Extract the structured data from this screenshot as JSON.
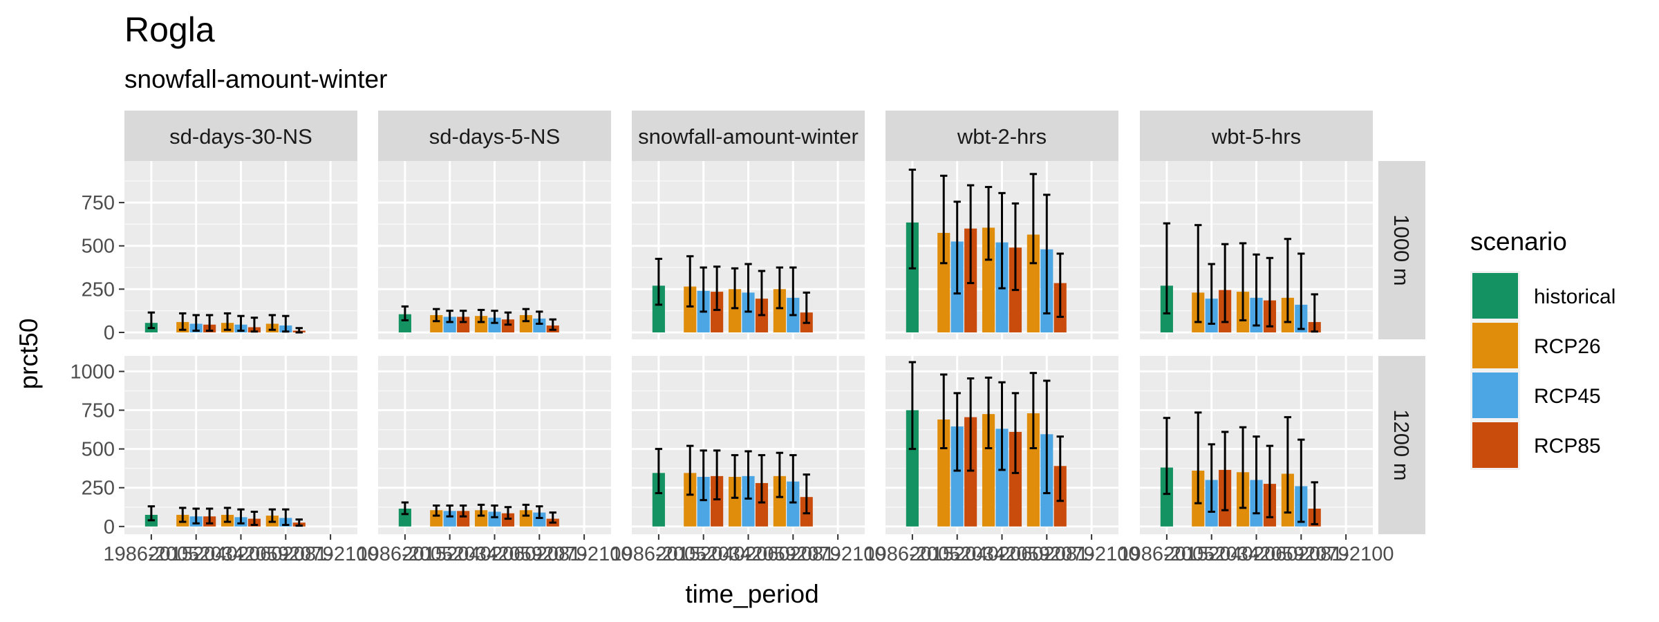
{
  "chart_data": {
    "type": "bar",
    "title": "Rogla",
    "subtitle": "snowfall-amount-winter",
    "xlabel": "time_period",
    "ylabel": "prct50",
    "columns": [
      "sd-days-30-NS",
      "sd-days-5-NS",
      "snowfall-amount-winter",
      "wbt-2-hrs",
      "wbt-5-hrs"
    ],
    "rows": [
      "1000 m",
      "1200 m"
    ],
    "x_tick_labels": [
      "1986-2005",
      "2015-2034",
      "2040-2059",
      "2060-2079",
      "2081-2100"
    ],
    "ylim": [
      [
        -40,
        990
      ],
      [
        -50,
        1100
      ]
    ],
    "y_ticks": [
      [
        0,
        250,
        500,
        750
      ],
      [
        0,
        250,
        500,
        750,
        1000
      ]
    ],
    "legend_title": "scenario",
    "series": [
      {
        "name": "historical",
        "color": "#159261"
      },
      {
        "name": "RCP26",
        "color": "#E08D0B"
      },
      {
        "name": "RCP45",
        "color": "#4BA6E3"
      },
      {
        "name": "RCP85",
        "color": "#CA4C0C"
      }
    ],
    "panels": [
      {
        "column": "sd-days-30-NS",
        "row": "1000 m",
        "bars": [
          {
            "period": "1986-2005",
            "scenario": "historical",
            "value": 55,
            "low": 25,
            "high": 115
          },
          {
            "period": "2015-2034",
            "scenario": "RCP26",
            "value": 60,
            "low": 15,
            "high": 110
          },
          {
            "period": "2015-2034",
            "scenario": "RCP45",
            "value": 50,
            "low": 10,
            "high": 100
          },
          {
            "period": "2015-2034",
            "scenario": "RCP85",
            "value": 45,
            "low": 10,
            "high": 100
          },
          {
            "period": "2040-2059",
            "scenario": "RCP26",
            "value": 55,
            "low": 15,
            "high": 110
          },
          {
            "period": "2040-2059",
            "scenario": "RCP45",
            "value": 45,
            "low": 10,
            "high": 95
          },
          {
            "period": "2040-2059",
            "scenario": "RCP85",
            "value": 30,
            "low": 5,
            "high": 85
          },
          {
            "period": "2060-2079",
            "scenario": "RCP26",
            "value": 50,
            "low": 15,
            "high": 100
          },
          {
            "period": "2060-2079",
            "scenario": "RCP45",
            "value": 40,
            "low": 5,
            "high": 95
          },
          {
            "period": "2060-2079",
            "scenario": "RCP85",
            "value": 10,
            "low": 0,
            "high": 25
          }
        ]
      },
      {
        "column": "sd-days-5-NS",
        "row": "1000 m",
        "bars": [
          {
            "period": "1986-2005",
            "scenario": "historical",
            "value": 105,
            "low": 70,
            "high": 150
          },
          {
            "period": "2015-2034",
            "scenario": "RCP26",
            "value": 100,
            "low": 65,
            "high": 135
          },
          {
            "period": "2015-2034",
            "scenario": "RCP45",
            "value": 90,
            "low": 60,
            "high": 125
          },
          {
            "period": "2015-2034",
            "scenario": "RCP85",
            "value": 90,
            "low": 60,
            "high": 125
          },
          {
            "period": "2040-2059",
            "scenario": "RCP26",
            "value": 95,
            "low": 60,
            "high": 130
          },
          {
            "period": "2040-2059",
            "scenario": "RCP45",
            "value": 85,
            "low": 55,
            "high": 125
          },
          {
            "period": "2040-2059",
            "scenario": "RCP85",
            "value": 75,
            "low": 45,
            "high": 115
          },
          {
            "period": "2060-2079",
            "scenario": "RCP26",
            "value": 100,
            "low": 65,
            "high": 135
          },
          {
            "period": "2060-2079",
            "scenario": "RCP45",
            "value": 80,
            "low": 50,
            "high": 120
          },
          {
            "period": "2060-2079",
            "scenario": "RCP85",
            "value": 40,
            "low": 15,
            "high": 75
          }
        ]
      },
      {
        "column": "snowfall-amount-winter",
        "row": "1000 m",
        "bars": [
          {
            "period": "1986-2005",
            "scenario": "historical",
            "value": 270,
            "low": 160,
            "high": 425
          },
          {
            "period": "2015-2034",
            "scenario": "RCP26",
            "value": 265,
            "low": 150,
            "high": 440
          },
          {
            "period": "2015-2034",
            "scenario": "RCP45",
            "value": 240,
            "low": 120,
            "high": 375
          },
          {
            "period": "2015-2034",
            "scenario": "RCP85",
            "value": 235,
            "low": 130,
            "high": 380
          },
          {
            "period": "2040-2059",
            "scenario": "RCP26",
            "value": 250,
            "low": 140,
            "high": 370
          },
          {
            "period": "2040-2059",
            "scenario": "RCP45",
            "value": 230,
            "low": 120,
            "high": 395
          },
          {
            "period": "2040-2059",
            "scenario": "RCP85",
            "value": 195,
            "low": 100,
            "high": 355
          },
          {
            "period": "2060-2079",
            "scenario": "RCP26",
            "value": 250,
            "low": 140,
            "high": 375
          },
          {
            "period": "2060-2079",
            "scenario": "RCP45",
            "value": 200,
            "low": 100,
            "high": 375
          },
          {
            "period": "2060-2079",
            "scenario": "RCP85",
            "value": 115,
            "low": 55,
            "high": 230
          }
        ]
      },
      {
        "column": "wbt-2-hrs",
        "row": "1000 m",
        "bars": [
          {
            "period": "1986-2005",
            "scenario": "historical",
            "value": 635,
            "low": 370,
            "high": 940
          },
          {
            "period": "2015-2034",
            "scenario": "RCP26",
            "value": 575,
            "low": 400,
            "high": 905
          },
          {
            "period": "2015-2034",
            "scenario": "RCP45",
            "value": 525,
            "low": 225,
            "high": 755
          },
          {
            "period": "2015-2034",
            "scenario": "RCP85",
            "value": 600,
            "low": 285,
            "high": 850
          },
          {
            "period": "2040-2059",
            "scenario": "RCP26",
            "value": 605,
            "low": 420,
            "high": 840
          },
          {
            "period": "2040-2059",
            "scenario": "RCP45",
            "value": 520,
            "low": 255,
            "high": 805
          },
          {
            "period": "2040-2059",
            "scenario": "RCP85",
            "value": 490,
            "low": 245,
            "high": 745
          },
          {
            "period": "2060-2079",
            "scenario": "RCP26",
            "value": 565,
            "low": 400,
            "high": 915
          },
          {
            "period": "2060-2079",
            "scenario": "RCP45",
            "value": 480,
            "low": 110,
            "high": 795
          },
          {
            "period": "2060-2079",
            "scenario": "RCP85",
            "value": 285,
            "low": 90,
            "high": 455
          }
        ]
      },
      {
        "column": "wbt-5-hrs",
        "row": "1000 m",
        "bars": [
          {
            "period": "1986-2005",
            "scenario": "historical",
            "value": 270,
            "low": 110,
            "high": 630
          },
          {
            "period": "2015-2034",
            "scenario": "RCP26",
            "value": 230,
            "low": 60,
            "high": 620
          },
          {
            "period": "2015-2034",
            "scenario": "RCP45",
            "value": 195,
            "low": 50,
            "high": 395
          },
          {
            "period": "2015-2034",
            "scenario": "RCP85",
            "value": 245,
            "low": 60,
            "high": 510
          },
          {
            "period": "2040-2059",
            "scenario": "RCP26",
            "value": 235,
            "low": 70,
            "high": 515
          },
          {
            "period": "2040-2059",
            "scenario": "RCP45",
            "value": 200,
            "low": 40,
            "high": 450
          },
          {
            "period": "2040-2059",
            "scenario": "RCP85",
            "value": 185,
            "low": 35,
            "high": 430
          },
          {
            "period": "2060-2079",
            "scenario": "RCP26",
            "value": 200,
            "low": 60,
            "high": 540
          },
          {
            "period": "2060-2079",
            "scenario": "RCP45",
            "value": 160,
            "low": 20,
            "high": 455
          },
          {
            "period": "2060-2079",
            "scenario": "RCP85",
            "value": 60,
            "low": 5,
            "high": 220
          }
        ]
      },
      {
        "column": "sd-days-30-NS",
        "row": "1200 m",
        "bars": [
          {
            "period": "1986-2005",
            "scenario": "historical",
            "value": 75,
            "low": 40,
            "high": 130
          },
          {
            "period": "2015-2034",
            "scenario": "RCP26",
            "value": 75,
            "low": 30,
            "high": 120
          },
          {
            "period": "2015-2034",
            "scenario": "RCP45",
            "value": 65,
            "low": 20,
            "high": 115
          },
          {
            "period": "2015-2034",
            "scenario": "RCP85",
            "value": 65,
            "low": 20,
            "high": 115
          },
          {
            "period": "2040-2059",
            "scenario": "RCP26",
            "value": 75,
            "low": 30,
            "high": 120
          },
          {
            "period": "2040-2059",
            "scenario": "RCP45",
            "value": 60,
            "low": 20,
            "high": 110
          },
          {
            "period": "2040-2059",
            "scenario": "RCP85",
            "value": 50,
            "low": 10,
            "high": 95
          },
          {
            "period": "2060-2079",
            "scenario": "RCP26",
            "value": 70,
            "low": 30,
            "high": 110
          },
          {
            "period": "2060-2079",
            "scenario": "RCP45",
            "value": 55,
            "low": 10,
            "high": 110
          },
          {
            "period": "2060-2079",
            "scenario": "RCP85",
            "value": 25,
            "low": 5,
            "high": 45
          }
        ]
      },
      {
        "column": "sd-days-5-NS",
        "row": "1200 m",
        "bars": [
          {
            "period": "1986-2005",
            "scenario": "historical",
            "value": 115,
            "low": 80,
            "high": 155
          },
          {
            "period": "2015-2034",
            "scenario": "RCP26",
            "value": 105,
            "low": 70,
            "high": 135
          },
          {
            "period": "2015-2034",
            "scenario": "RCP45",
            "value": 100,
            "low": 65,
            "high": 135
          },
          {
            "period": "2015-2034",
            "scenario": "RCP85",
            "value": 100,
            "low": 65,
            "high": 135
          },
          {
            "period": "2040-2059",
            "scenario": "RCP26",
            "value": 105,
            "low": 70,
            "high": 140
          },
          {
            "period": "2040-2059",
            "scenario": "RCP45",
            "value": 95,
            "low": 60,
            "high": 135
          },
          {
            "period": "2040-2059",
            "scenario": "RCP85",
            "value": 85,
            "low": 50,
            "high": 125
          },
          {
            "period": "2060-2079",
            "scenario": "RCP26",
            "value": 105,
            "low": 70,
            "high": 140
          },
          {
            "period": "2060-2079",
            "scenario": "RCP45",
            "value": 90,
            "low": 55,
            "high": 130
          },
          {
            "period": "2060-2079",
            "scenario": "RCP85",
            "value": 50,
            "low": 25,
            "high": 90
          }
        ]
      },
      {
        "column": "snowfall-amount-winter",
        "row": "1200 m",
        "bars": [
          {
            "period": "1986-2005",
            "scenario": "historical",
            "value": 345,
            "low": 215,
            "high": 500
          },
          {
            "period": "2015-2034",
            "scenario": "RCP26",
            "value": 345,
            "low": 205,
            "high": 520
          },
          {
            "period": "2015-2034",
            "scenario": "RCP45",
            "value": 320,
            "low": 170,
            "high": 490
          },
          {
            "period": "2015-2034",
            "scenario": "RCP85",
            "value": 325,
            "low": 175,
            "high": 490
          },
          {
            "period": "2040-2059",
            "scenario": "RCP26",
            "value": 320,
            "low": 185,
            "high": 460
          },
          {
            "period": "2040-2059",
            "scenario": "RCP45",
            "value": 325,
            "low": 180,
            "high": 485
          },
          {
            "period": "2040-2059",
            "scenario": "RCP85",
            "value": 280,
            "low": 155,
            "high": 460
          },
          {
            "period": "2060-2079",
            "scenario": "RCP26",
            "value": 325,
            "low": 190,
            "high": 475
          },
          {
            "period": "2060-2079",
            "scenario": "RCP45",
            "value": 290,
            "low": 155,
            "high": 460
          },
          {
            "period": "2060-2079",
            "scenario": "RCP85",
            "value": 190,
            "low": 85,
            "high": 335
          }
        ]
      },
      {
        "column": "wbt-2-hrs",
        "row": "1200 m",
        "bars": [
          {
            "period": "1986-2005",
            "scenario": "historical",
            "value": 750,
            "low": 500,
            "high": 1060
          },
          {
            "period": "2015-2034",
            "scenario": "RCP26",
            "value": 690,
            "low": 505,
            "high": 980
          },
          {
            "period": "2015-2034",
            "scenario": "RCP45",
            "value": 645,
            "low": 360,
            "high": 860
          },
          {
            "period": "2015-2034",
            "scenario": "RCP85",
            "value": 705,
            "low": 360,
            "high": 955
          },
          {
            "period": "2040-2059",
            "scenario": "RCP26",
            "value": 725,
            "low": 505,
            "high": 960
          },
          {
            "period": "2040-2059",
            "scenario": "RCP45",
            "value": 630,
            "low": 365,
            "high": 930
          },
          {
            "period": "2040-2059",
            "scenario": "RCP85",
            "value": 610,
            "low": 345,
            "high": 860
          },
          {
            "period": "2060-2079",
            "scenario": "RCP26",
            "value": 730,
            "low": 505,
            "high": 990
          },
          {
            "period": "2060-2079",
            "scenario": "RCP45",
            "value": 595,
            "low": 215,
            "high": 940
          },
          {
            "period": "2060-2079",
            "scenario": "RCP85",
            "value": 390,
            "low": 165,
            "high": 580
          }
        ]
      },
      {
        "column": "wbt-5-hrs",
        "row": "1200 m",
        "bars": [
          {
            "period": "1986-2005",
            "scenario": "historical",
            "value": 380,
            "low": 210,
            "high": 700
          },
          {
            "period": "2015-2034",
            "scenario": "RCP26",
            "value": 360,
            "low": 150,
            "high": 735
          },
          {
            "period": "2015-2034",
            "scenario": "RCP45",
            "value": 300,
            "low": 95,
            "high": 530
          },
          {
            "period": "2015-2034",
            "scenario": "RCP85",
            "value": 365,
            "low": 105,
            "high": 610
          },
          {
            "period": "2040-2059",
            "scenario": "RCP26",
            "value": 350,
            "low": 120,
            "high": 640
          },
          {
            "period": "2040-2059",
            "scenario": "RCP45",
            "value": 300,
            "low": 85,
            "high": 580
          },
          {
            "period": "2040-2059",
            "scenario": "RCP85",
            "value": 275,
            "low": 60,
            "high": 520
          },
          {
            "period": "2060-2079",
            "scenario": "RCP26",
            "value": 340,
            "low": 90,
            "high": 705
          },
          {
            "period": "2060-2079",
            "scenario": "RCP45",
            "value": 260,
            "low": 30,
            "high": 560
          },
          {
            "period": "2060-2079",
            "scenario": "RCP85",
            "value": 115,
            "low": 15,
            "high": 285
          }
        ]
      }
    ]
  }
}
